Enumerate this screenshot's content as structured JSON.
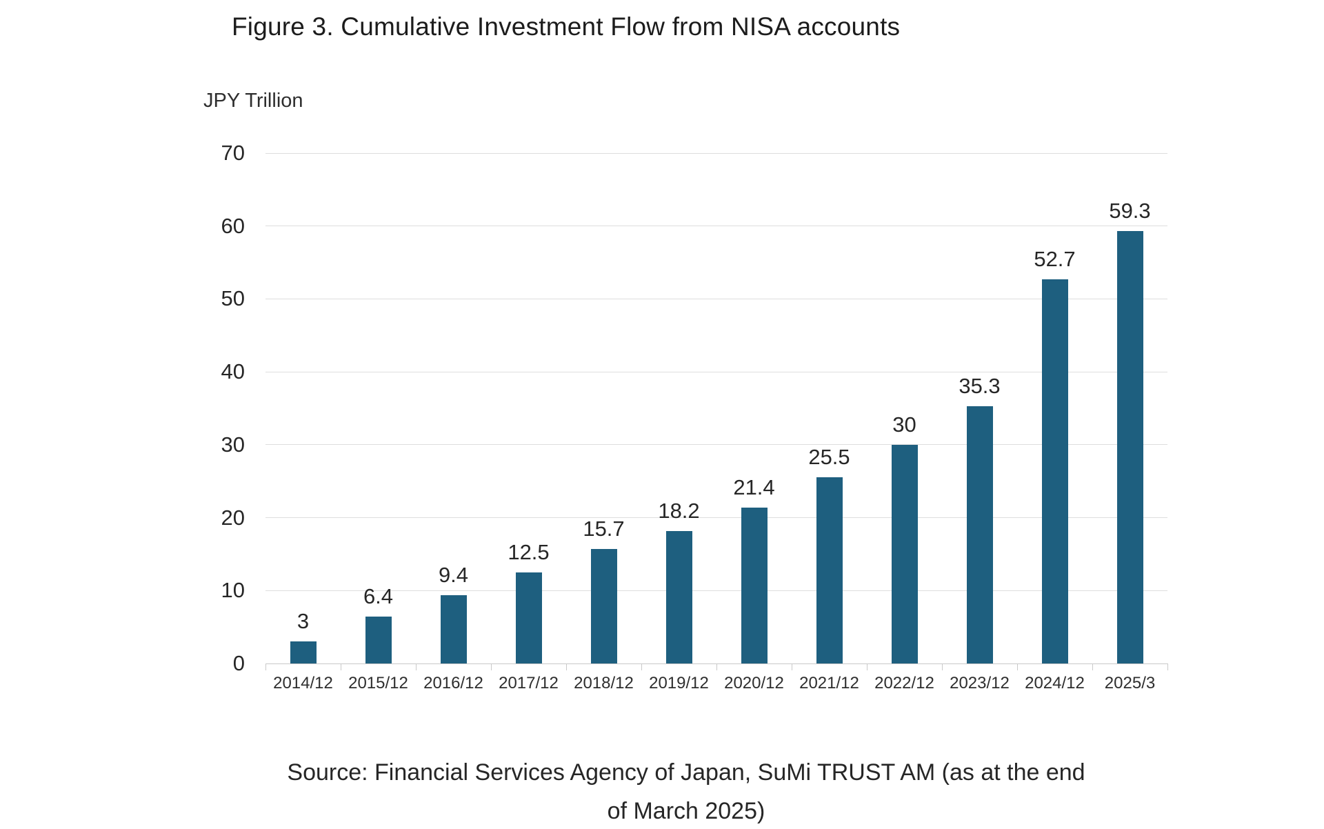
{
  "title": "Figure 3. Cumulative Investment Flow from NISA accounts",
  "axis_unit_label": "JPY Trillion",
  "source": {
    "line1": "Source: Financial Services Agency of Japan, SuMi TRUST AM (as at the end",
    "line2": "of March 2025)"
  },
  "colors": {
    "bar": "#1E5F7F",
    "grid": "#DEDEDE",
    "axis": "#C9C9C9",
    "text": "#262626"
  },
  "chart_data": {
    "type": "bar",
    "title": "Figure 3. Cumulative Investment Flow from NISA accounts",
    "xlabel": "",
    "ylabel": "JPY Trillion",
    "categories": [
      "2014/12",
      "2015/12",
      "2016/12",
      "2017/12",
      "2018/12",
      "2019/12",
      "2020/12",
      "2021/12",
      "2022/12",
      "2023/12",
      "2024/12",
      "2025/3"
    ],
    "values": [
      3,
      6.4,
      9.4,
      12.5,
      15.7,
      18.2,
      21.4,
      25.5,
      30,
      35.3,
      52.7,
      59.3
    ],
    "value_labels": [
      "3",
      "6.4",
      "9.4",
      "12.5",
      "15.7",
      "18.2",
      "21.4",
      "25.5",
      "30",
      "35.3",
      "52.7",
      "59.3"
    ],
    "ylim": [
      0,
      70
    ],
    "yticks": [
      0,
      10,
      20,
      30,
      40,
      50,
      60,
      70
    ],
    "grid": "horizontal",
    "legend": "none",
    "data_labels": "above-bars"
  }
}
